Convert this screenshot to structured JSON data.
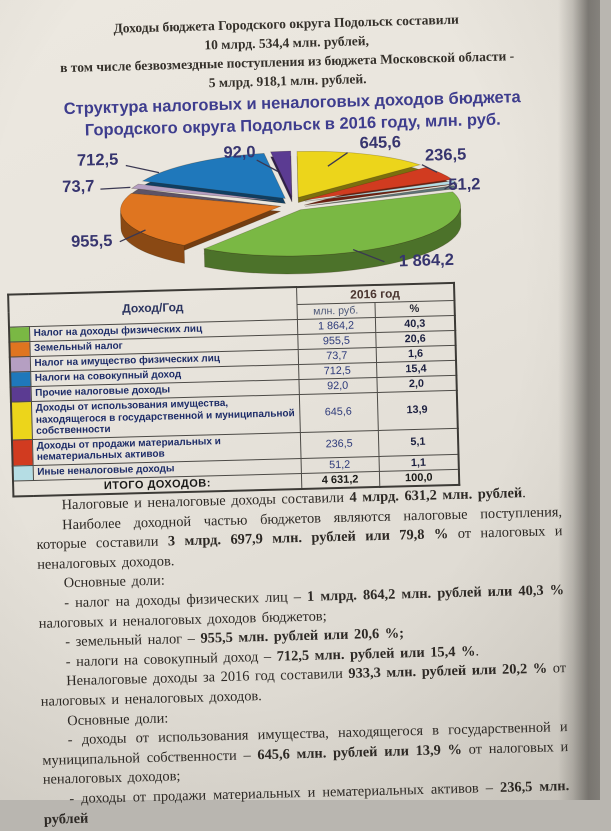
{
  "header": {
    "lines": [
      "Доходы бюджета Городского округа Подольск составили",
      "10 млрд. 534,4 млн. рублей,",
      "в том числе безвозмездные поступления из бюджета Московской области -",
      "5 млрд.  918,1 млн. рублей."
    ]
  },
  "chart_data": {
    "type": "pie",
    "title": "Структура налоговых и неналоговых доходов бюджета Городского округа Подольск в 2016 году, млн. руб.",
    "title_lines": [
      "Структура налоговых и неналоговых доходов бюджета",
      "Городского округа Подольск в 2016 году, млн. руб."
    ],
    "unit": "млн. руб.",
    "start_angle_deg": -7.2,
    "label_color": "#37356f",
    "slices": [
      {
        "label": "Прочие налоговые доходы",
        "value": 92.0,
        "display": "92,0",
        "pct": 2.0,
        "color": "#5b3b92"
      },
      {
        "label": "Доходы от использования имущества, находящегося в государственной и муниципальной собственности",
        "value": 645.6,
        "display": "645,6",
        "pct": 13.9,
        "color": "#ecd51b"
      },
      {
        "label": "Доходы от продажи материальных и нематериальных активов",
        "value": 236.5,
        "display": "236,5",
        "pct": 5.1,
        "color": "#d13b20"
      },
      {
        "label": "Иные неналоговые доходы",
        "value": 51.2,
        "display": "51,2",
        "pct": 1.1,
        "color": "#b5dde4"
      },
      {
        "label": "Налог на доходы физических лиц",
        "value": 1864.2,
        "display": "1 864,2",
        "pct": 40.3,
        "color": "#7ab844"
      },
      {
        "label": "Земельный налог",
        "value": 955.5,
        "display": "955,5",
        "pct": 20.6,
        "color": "#df7520"
      },
      {
        "label": "Налог на имущество физических лиц",
        "value": 73.7,
        "display": "73,7",
        "pct": 1.6,
        "color": "#b59fc2"
      },
      {
        "label": "Налоги на совокупный доход",
        "value": 712.5,
        "display": "712,5",
        "pct": 15.4,
        "color": "#1f78bb"
      }
    ]
  },
  "table": {
    "col1_header": "Доход/Год",
    "col2_header": "2016 год",
    "sub_headers": [
      "млн. руб.",
      "%"
    ],
    "rows": [
      {
        "color": "#7ab844",
        "name": "Налог на доходы физических лиц",
        "value": "1 864,2",
        "pct": "40,3"
      },
      {
        "color": "#df7520",
        "name": "Земельный налог",
        "value": "955,5",
        "pct": "20,6"
      },
      {
        "color": "#b59fc2",
        "name": "Налог на имущество физических лиц",
        "value": "73,7",
        "pct": "1,6"
      },
      {
        "color": "#1f78bb",
        "name": "Налоги на совокупный доход",
        "value": "712,5",
        "pct": "15,4"
      },
      {
        "color": "#5b3b92",
        "name": "Прочие налоговые доходы",
        "value": "92,0",
        "pct": "2,0"
      },
      {
        "color": "#ecd51b",
        "name": "Доходы от использования имущества, находящегося в государственной и муниципальной собственности",
        "value": "645,6",
        "pct": "13,9"
      },
      {
        "color": "#d13b20",
        "name": "Доходы от продажи материальных и нематериальных активов",
        "value": "236,5",
        "pct": "5,1"
      },
      {
        "color": "#b5dde4",
        "name": "Иные неналоговые доходы",
        "value": "51,2",
        "pct": "1,1"
      }
    ],
    "total_label": "ИТОГО ДОХОДОВ:",
    "total_value": "4 631,2",
    "total_pct": "100,0"
  },
  "body": {
    "paragraphs": [
      [
        {
          "t": "Налоговые и неналоговые доходы составили "
        },
        {
          "t": "4 млрд. 631,2 млн. рублей",
          "b": true
        },
        {
          "t": "."
        }
      ],
      [
        {
          "t": "Наиболее доходной частью бюджетов являются налоговые поступления, которые составили "
        },
        {
          "t": "3 млрд.  697,9 млн. рублей или 79,8 %",
          "b": true
        },
        {
          "t": " от налоговых и неналоговых доходов."
        }
      ],
      [
        {
          "t": "Основные  доли:"
        }
      ],
      [
        {
          "t": "- налог на доходы физических лиц – "
        },
        {
          "t": "1 млрд. 864,2  млн. рублей  или  40,3 %",
          "b": true
        },
        {
          "t": " налоговых и неналоговых доходов бюджетов;"
        }
      ],
      [
        {
          "t": "- земельный налог – "
        },
        {
          "t": "955,5 млн. рублей  или 20,6 %;",
          "b": true
        }
      ],
      [
        {
          "t": "- налоги на совокупный доход – "
        },
        {
          "t": "712,5 млн. рублей или 15,4 %",
          "b": true
        },
        {
          "t": "."
        }
      ],
      [
        {
          "t": "Неналоговые доходы  за 2016 год составили "
        },
        {
          "t": "933,3 млн. рублей или  20,2 %",
          "b": true
        },
        {
          "t": " от  налоговых и неналоговых доходов."
        }
      ],
      [
        {
          "t": "Основные доли:"
        }
      ],
      [
        {
          "t": "- доходы от использования имущества, находящегося в государственной и муниципальной собственности – "
        },
        {
          "t": "645,6 млн. рублей или 13,9 %",
          "b": true
        },
        {
          "t": " от  налоговых и неналоговых доходов;"
        }
      ],
      [
        {
          "t": "- доходы  от  продажи  материальных и нематериальных  активов – "
        },
        {
          "t": "236,5 млн. рублей",
          "b": true
        }
      ]
    ]
  }
}
